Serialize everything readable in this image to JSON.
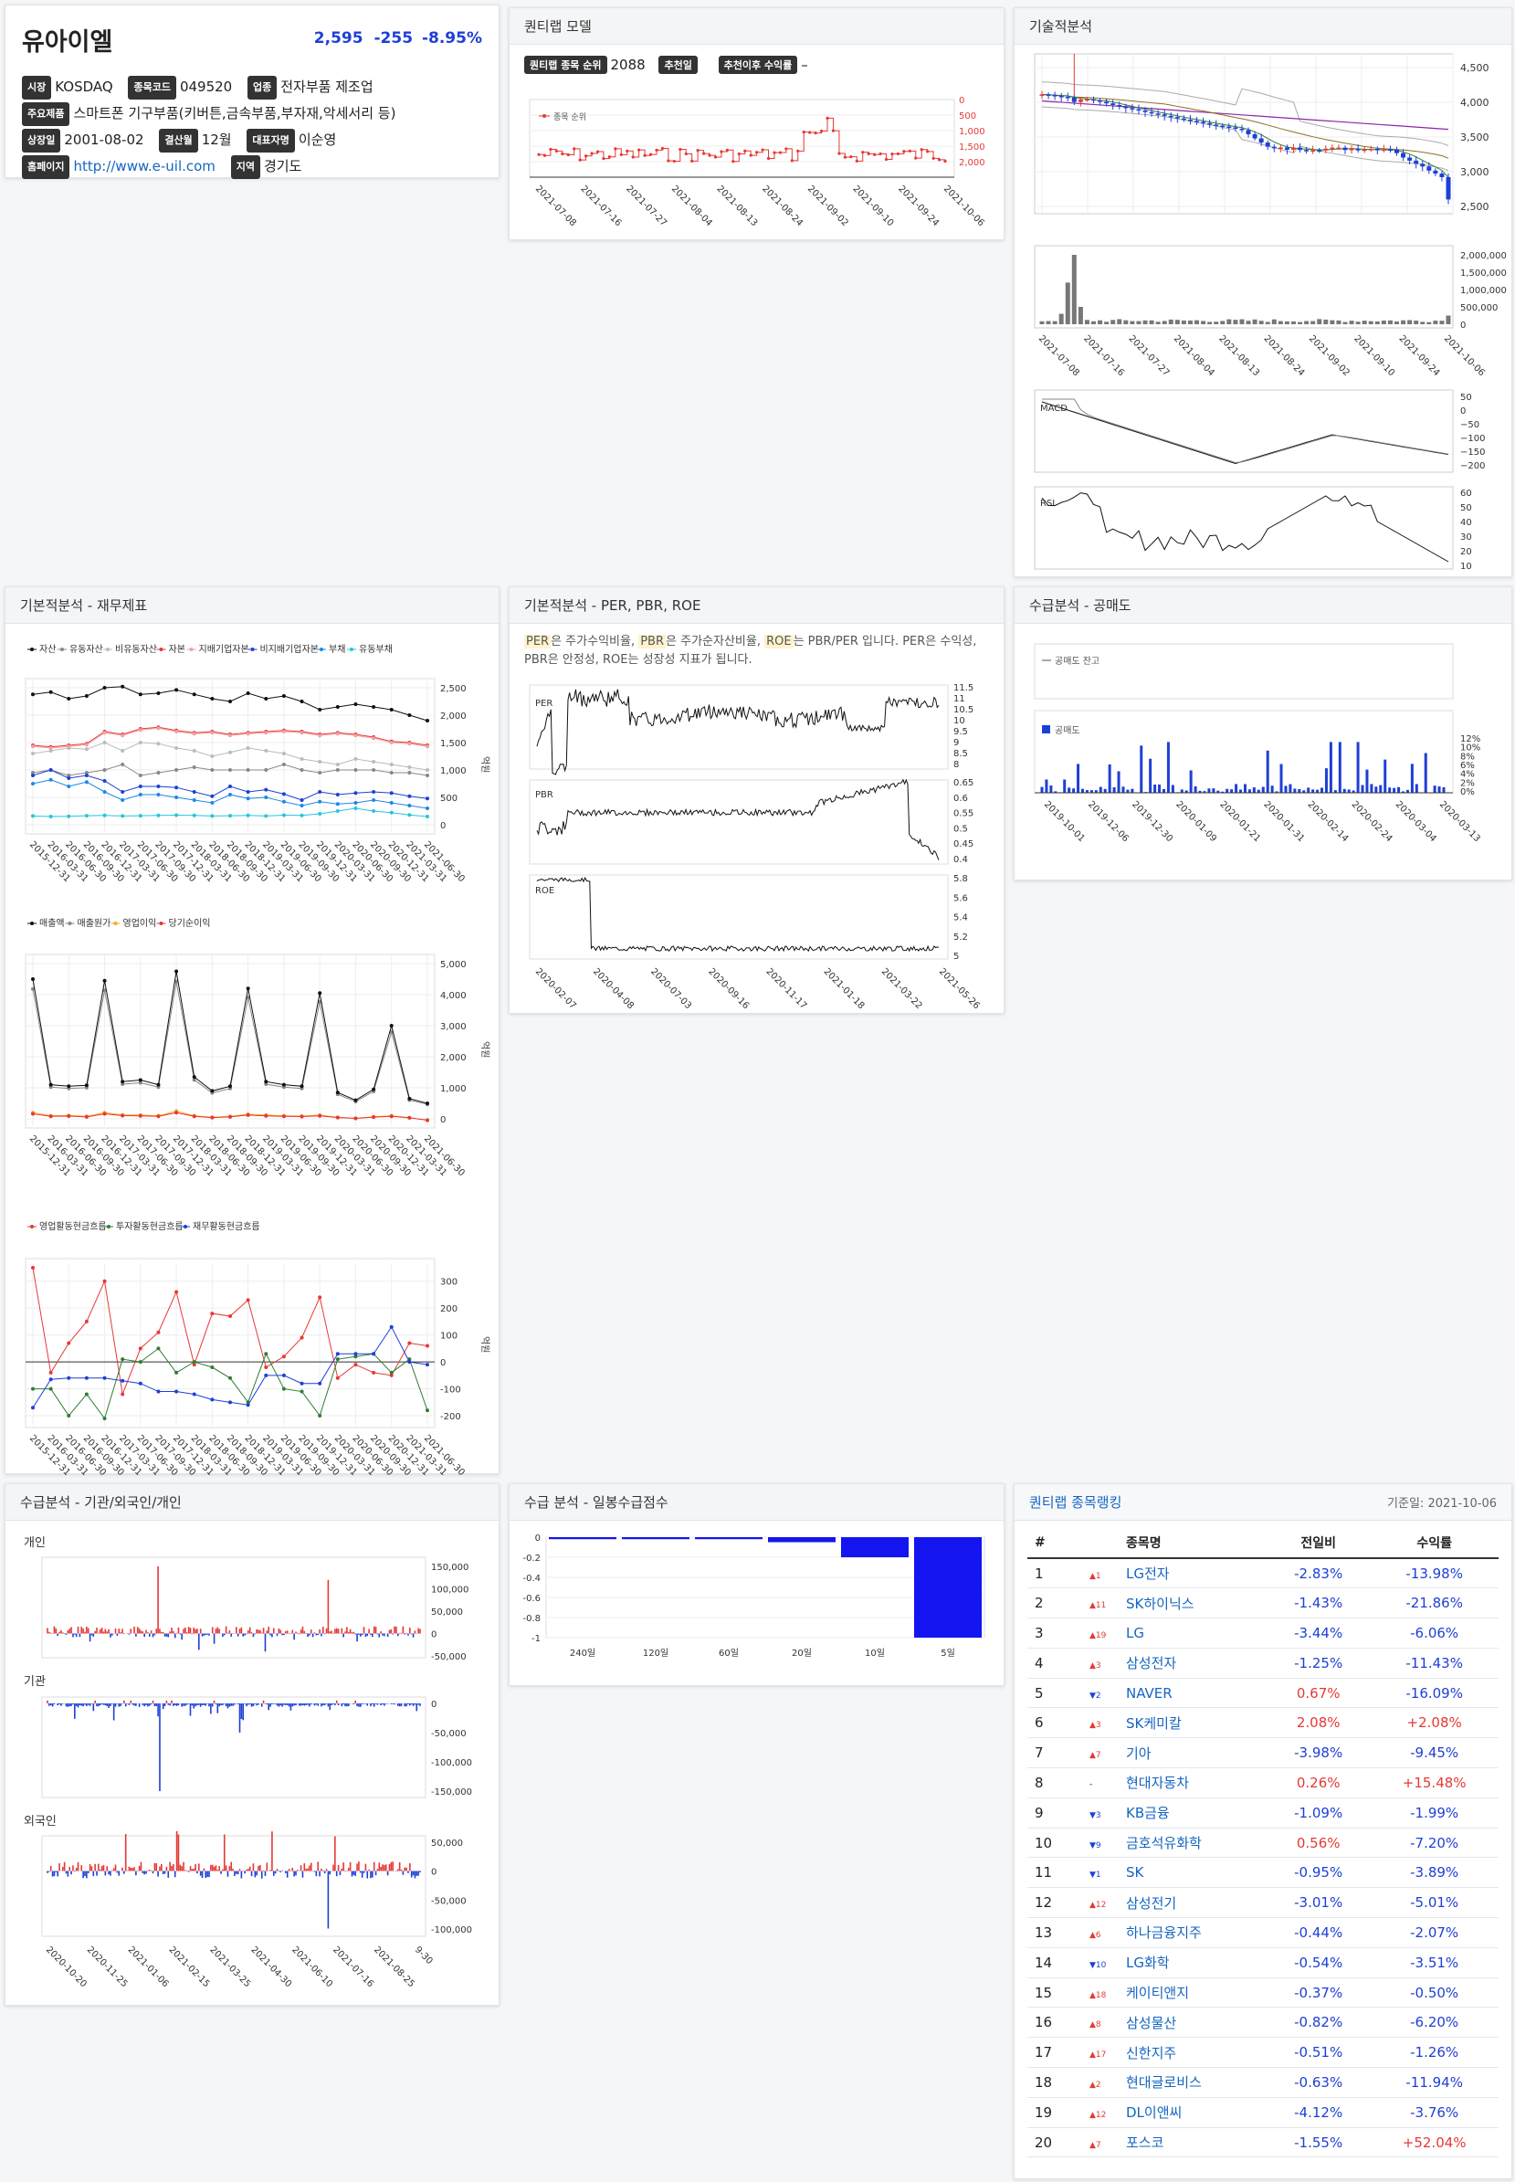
{
  "stock": {
    "name": "유아이엘",
    "price": "2,595",
    "change": "-255",
    "change_pct": "-8.95%",
    "market_label": "시장",
    "market": "KOSDAQ",
    "code_label": "종목코드",
    "code": "049520",
    "industry_label": "업종",
    "industry": "전자부품 제조업",
    "product_label": "주요제품",
    "product": "스마트폰 기구부품(키버튼,금속부품,부자재,악세서리 등)",
    "listed_label": "상장일",
    "listed": "2001-08-02",
    "fiscal_label": "결산월",
    "fiscal": "12월",
    "ceo_label": "대표자명",
    "ceo": "이순영",
    "homepage_label": "홈페이지",
    "homepage": "http://www.e-uil.com",
    "region_label": "지역",
    "region": "경기도"
  },
  "quantilab_model": {
    "title": "퀀티랩 모델",
    "rank_label": "퀀티랩 종목 순위",
    "rank": "2088",
    "rec_label": "추천일",
    "rec": "",
    "since_label": "추천이후 수익률",
    "since": "–",
    "legend": "종목 순위",
    "y_ticks": [
      "0",
      "500",
      "1,000",
      "1,500",
      "2,000"
    ],
    "x_ticks": [
      "2021-07-08",
      "2021-07-16",
      "2021-07-27",
      "2021-08-04",
      "2021-08-13",
      "2021-08-24",
      "2021-09-02",
      "2021-09-10",
      "2021-09-24",
      "2021-10-06"
    ]
  },
  "technical": {
    "title": "기술적분석",
    "price_ticks": [
      "4,500",
      "4,000",
      "3,500",
      "3,000",
      "2,500"
    ],
    "volume_ticks": [
      "2,000,000",
      "1,500,000",
      "1,000,000",
      "500,000",
      "0"
    ],
    "x_ticks": [
      "2021-07-08",
      "2021-07-16",
      "2021-07-27",
      "2021-08-04",
      "2021-08-13",
      "2021-08-24",
      "2021-09-02",
      "2021-09-10",
      "2021-09-24",
      "2021-10-06"
    ],
    "macd_label": "MACD",
    "macd_ticks": [
      "50",
      "0",
      "−50",
      "−100",
      "−150",
      "−200"
    ],
    "rsi_label": "RSI",
    "rsi_ticks": [
      "60",
      "50",
      "40",
      "30",
      "20",
      "10"
    ]
  },
  "fundamental": {
    "title": "기본적분석 - 재무제표",
    "unit": "억원",
    "bs_legend": [
      "자산",
      "유동자산",
      "비유동자산",
      "자본",
      "지배기업자본",
      "비지배기업자본",
      "부채",
      "유동부채"
    ],
    "bs_ticks": [
      "2,500",
      "2,000",
      "1,500",
      "1,000",
      "500",
      "0"
    ],
    "is_legend": [
      "매출액",
      "매출원가",
      "영업이익",
      "당기순이익"
    ],
    "is_ticks": [
      "5,000",
      "4,000",
      "3,000",
      "2,000",
      "1,000",
      "0"
    ],
    "cf_legend": [
      "영업활동현금흐름",
      "투자활동현금흐름",
      "재무활동현금흐름"
    ],
    "cf_ticks": [
      "300",
      "200",
      "100",
      "0",
      "-100",
      "-200"
    ],
    "dates": [
      "2015-12-31",
      "2016-03-31",
      "2016-06-30",
      "2016-09-30",
      "2016-12-31",
      "2017-03-31",
      "2017-06-30",
      "2017-09-30",
      "2017-12-31",
      "2018-03-31",
      "2018-06-30",
      "2018-09-30",
      "2018-12-31",
      "2019-03-31",
      "2019-06-30",
      "2019-09-30",
      "2019-12-31",
      "2020-03-31",
      "2020-06-30",
      "2020-09-30",
      "2020-12-31",
      "2021-03-31",
      "2021-06-30"
    ]
  },
  "valuation": {
    "title": "기본적분석 - PER, PBR, ROE",
    "desc_parts": [
      "PER",
      "은 주가수익비율, ",
      "PBR",
      "은 주가순자산비율, ",
      "ROE",
      "는 PBR/PER 입니다. PER은 수익성, PBR은 안정성, ROE는 성장성 지표가 됩니다."
    ],
    "per_label": "PER",
    "per_ticks": [
      "11.5",
      "11",
      "10.5",
      "10",
      "9.5",
      "9",
      "8.5",
      "8"
    ],
    "pbr_label": "PBR",
    "pbr_ticks": [
      "0.65",
      "0.6",
      "0.55",
      "0.5",
      "0.45",
      "0.4"
    ],
    "roe_label": "ROE",
    "roe_ticks": [
      "5.8",
      "5.6",
      "5.4",
      "5.2",
      "5"
    ],
    "x_ticks": [
      "2020-02-07",
      "2020-04-08",
      "2020-07-03",
      "2020-09-16",
      "2020-11-17",
      "2021-01-18",
      "2021-03-22",
      "2021-05-26"
    ]
  },
  "short": {
    "title": "수급분석 - 공매도",
    "balance_label": "공매도 잔고",
    "vol_label": "공매도",
    "y_ticks": [
      "12%",
      "10%",
      "8%",
      "6%",
      "4%",
      "2%",
      "0%"
    ],
    "x_ticks": [
      "2019-10-01",
      "2019-12-06",
      "2019-12-30",
      "2020-01-09",
      "2020-01-21",
      "2020-01-31",
      "2020-02-14",
      "2020-02-24",
      "2020-03-04",
      "2020-03-13"
    ]
  },
  "flows": {
    "title": "수급분석 - 기관/외국인/개인",
    "individual_label": "개인",
    "individual_ticks": [
      "150,000",
      "100,000",
      "50,000",
      "0",
      "-50,000"
    ],
    "inst_label": "기관",
    "inst_ticks": [
      "0",
      "-50,000",
      "-100,000",
      "-150,000"
    ],
    "foreign_label": "외국인",
    "foreign_ticks": [
      "50,000",
      "0",
      "-50,000",
      "-100,000"
    ],
    "x_ticks": [
      "2020-10-20",
      "2020-11-25",
      "2021-01-06",
      "2021-02-15",
      "2021-03-25",
      "2021-04-30",
      "2021-06-10",
      "2021-07-16",
      "2021-08-25",
      "9-30"
    ]
  },
  "daily_score": {
    "title": "수급 분석 - 일봉수급점수"
  },
  "ranking": {
    "title": "퀀티랩 종목랭킹",
    "base_date": "기준일: 2021-10-06",
    "headers": [
      "#",
      "종목명",
      "전일비",
      "수익률"
    ],
    "rows": [
      {
        "n": "1",
        "dir": "up",
        "chg": "1",
        "name": "LG전자",
        "day": "-2.83%",
        "ret": "-13.98%"
      },
      {
        "n": "2",
        "dir": "up",
        "chg": "11",
        "name": "SK하이닉스",
        "day": "-1.43%",
        "ret": "-21.86%"
      },
      {
        "n": "3",
        "dir": "up",
        "chg": "19",
        "name": "LG",
        "day": "-3.44%",
        "ret": "-6.06%"
      },
      {
        "n": "4",
        "dir": "up",
        "chg": "3",
        "name": "삼성전자",
        "day": "-1.25%",
        "ret": "-11.43%"
      },
      {
        "n": "5",
        "dir": "down",
        "chg": "2",
        "name": "NAVER",
        "day": "0.67%",
        "ret": "-16.09%"
      },
      {
        "n": "6",
        "dir": "up",
        "chg": "3",
        "name": "SK케미칼",
        "day": "2.08%",
        "ret": "+2.08%"
      },
      {
        "n": "7",
        "dir": "up",
        "chg": "7",
        "name": "기아",
        "day": "-3.98%",
        "ret": "-9.45%"
      },
      {
        "n": "8",
        "dir": "none",
        "chg": "-",
        "name": "현대자동차",
        "day": "0.26%",
        "ret": "+15.48%"
      },
      {
        "n": "9",
        "dir": "down",
        "chg": "3",
        "name": "KB금융",
        "day": "-1.09%",
        "ret": "-1.99%"
      },
      {
        "n": "10",
        "dir": "down",
        "chg": "9",
        "name": "금호석유화학",
        "day": "0.56%",
        "ret": "-7.20%"
      },
      {
        "n": "11",
        "dir": "down",
        "chg": "1",
        "name": "SK",
        "day": "-0.95%",
        "ret": "-3.89%"
      },
      {
        "n": "12",
        "dir": "up",
        "chg": "12",
        "name": "삼성전기",
        "day": "-3.01%",
        "ret": "-5.01%"
      },
      {
        "n": "13",
        "dir": "up",
        "chg": "6",
        "name": "하나금융지주",
        "day": "-0.44%",
        "ret": "-2.07%"
      },
      {
        "n": "14",
        "dir": "down",
        "chg": "10",
        "name": "LG화학",
        "day": "-0.54%",
        "ret": "-3.51%"
      },
      {
        "n": "15",
        "dir": "up",
        "chg": "18",
        "name": "케이티앤지",
        "day": "-0.37%",
        "ret": "-0.50%"
      },
      {
        "n": "16",
        "dir": "up",
        "chg": "8",
        "name": "삼성물산",
        "day": "-0.82%",
        "ret": "-6.20%"
      },
      {
        "n": "17",
        "dir": "up",
        "chg": "17",
        "name": "신한지주",
        "day": "-0.51%",
        "ret": "-1.26%"
      },
      {
        "n": "18",
        "dir": "up",
        "chg": "2",
        "name": "현대글로비스",
        "day": "-0.63%",
        "ret": "-11.94%"
      },
      {
        "n": "19",
        "dir": "up",
        "chg": "12",
        "name": "DL이앤씨",
        "day": "-4.12%",
        "ret": "-3.76%"
      },
      {
        "n": "20",
        "dir": "up",
        "chg": "7",
        "name": "포스코",
        "day": "-1.55%",
        "ret": "+52.04%"
      }
    ]
  },
  "chart_data": [
    {
      "type": "bar",
      "id": "daily-score",
      "categories": [
        "240일",
        "120일",
        "60일",
        "20일",
        "10일",
        "5일"
      ],
      "values": [
        -0.02,
        -0.02,
        -0.02,
        -0.05,
        -0.2,
        -1.0
      ],
      "ylim": [
        -1,
        0
      ],
      "y_ticks": [
        0,
        -0.2,
        -0.4,
        -0.6,
        -0.8,
        -1
      ]
    },
    {
      "type": "line",
      "id": "income",
      "series": [
        {
          "name": "매출액",
          "values": [
            4500,
            1100,
            1050,
            1080,
            4450,
            1200,
            1250,
            1100,
            4750,
            1350,
            900,
            1050,
            4200,
            1200,
            1100,
            1050,
            4050,
            850,
            600,
            950,
            3000,
            650,
            500
          ]
        },
        {
          "name": "영업이익",
          "values": [
            200,
            100,
            110,
            80,
            200,
            130,
            120,
            100,
            250,
            100,
            50,
            80,
            150,
            120,
            100,
            90,
            120,
            50,
            20,
            70,
            100,
            40,
            -50
          ]
        }
      ]
    }
  ]
}
